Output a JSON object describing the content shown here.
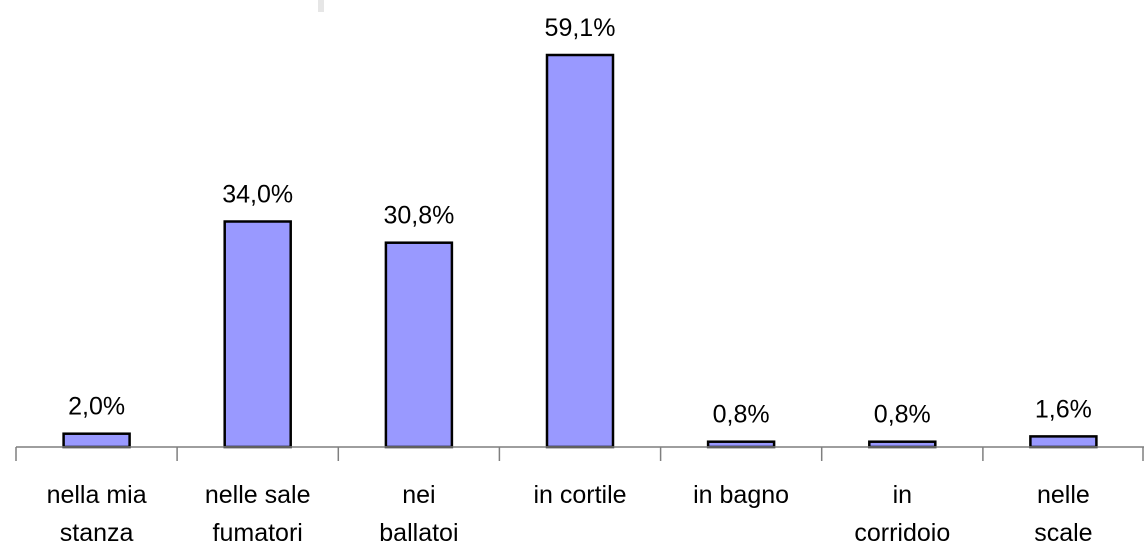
{
  "chart_data": {
    "type": "bar",
    "categories": [
      [
        "nella mia",
        "stanza"
      ],
      [
        "nelle sale",
        "fumatori"
      ],
      [
        "nei",
        "ballatoi"
      ],
      [
        "in cortile"
      ],
      [
        "in bagno"
      ],
      [
        "in",
        "corridoio"
      ],
      [
        "nelle",
        "scale"
      ]
    ],
    "values": [
      2.0,
      34.0,
      30.8,
      59.1,
      0.8,
      0.8,
      1.6
    ],
    "value_labels": [
      "2,0%",
      "34,0%",
      "30,8%",
      "59,1%",
      "0,8%",
      "0,8%",
      "1,6%"
    ],
    "title": "",
    "xlabel": "",
    "ylabel": "",
    "ylim": [
      0,
      60
    ],
    "grid": false,
    "legend": "none",
    "bar_color": "#9999ff",
    "bar_edge_color": "#000000",
    "axis_color": "#7f7f7f"
  }
}
